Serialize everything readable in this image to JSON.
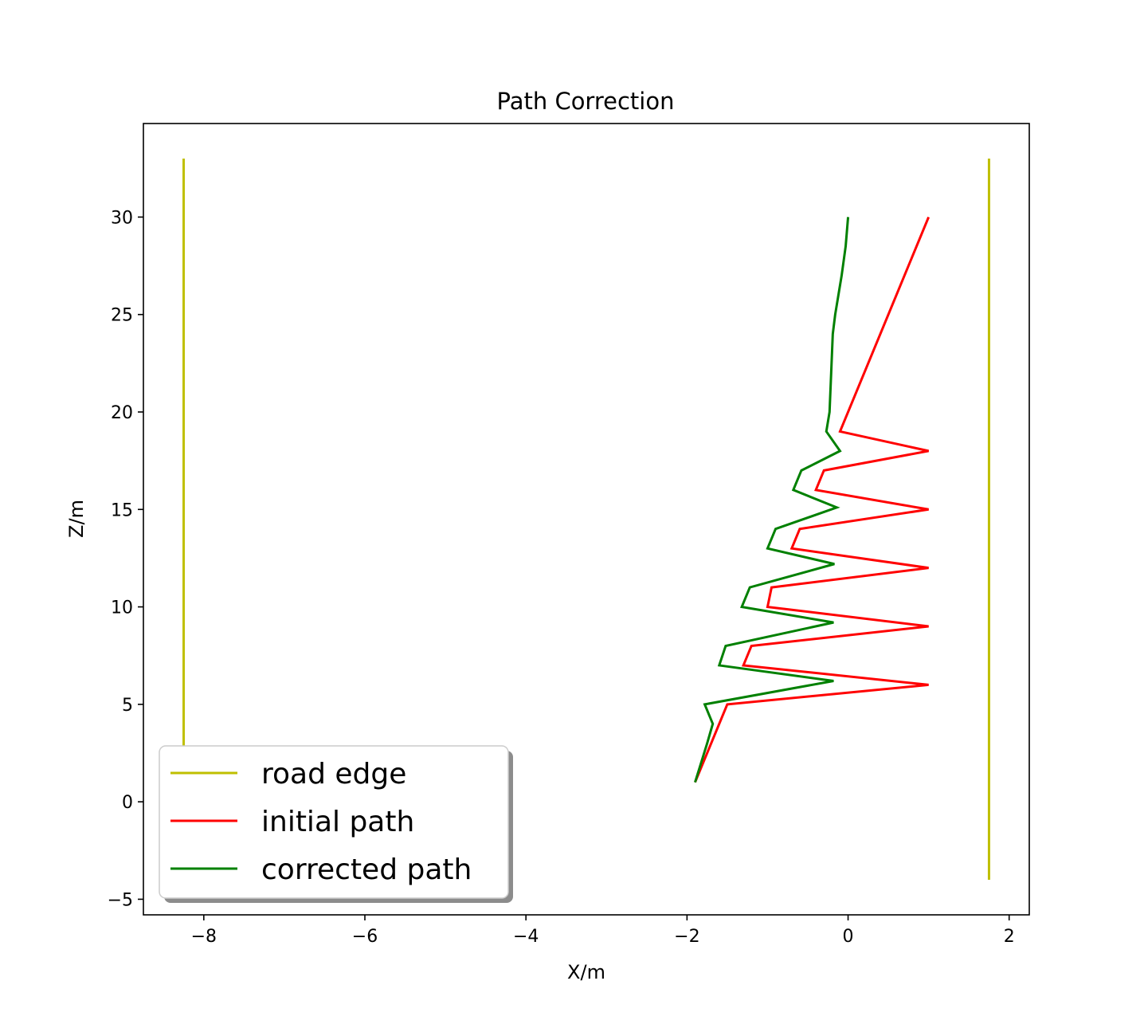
{
  "chart_data": {
    "type": "line",
    "title": "Path Correction",
    "xlabel": "X/m",
    "ylabel": "Z/m",
    "xlim": [
      -8.75,
      2.25
    ],
    "ylim": [
      -5.8,
      34.8
    ],
    "xticks": [
      {
        "value": -8,
        "label": "−8"
      },
      {
        "value": -6,
        "label": "−6"
      },
      {
        "value": -4,
        "label": "−4"
      },
      {
        "value": -2,
        "label": "−2"
      },
      {
        "value": 0,
        "label": "0"
      },
      {
        "value": 2,
        "label": "2"
      }
    ],
    "yticks": [
      {
        "value": -5,
        "label": "−5"
      },
      {
        "value": 0,
        "label": "0"
      },
      {
        "value": 5,
        "label": "5"
      },
      {
        "value": 10,
        "label": "10"
      },
      {
        "value": 15,
        "label": "15"
      },
      {
        "value": 20,
        "label": "20"
      },
      {
        "value": 25,
        "label": "25"
      },
      {
        "value": 30,
        "label": "30"
      }
    ],
    "grid": false,
    "legend_position": "lower-left",
    "series": [
      {
        "name": "road edge",
        "color": "#bfbf00",
        "segments": [
          {
            "x": [
              -8.25,
              -8.25
            ],
            "y": [
              33,
              -4
            ]
          },
          {
            "x": [
              1.75,
              1.75
            ],
            "y": [
              33,
              -4
            ]
          }
        ]
      },
      {
        "name": "initial path",
        "color": "#ff0000",
        "x": [
          -1.9,
          -1.7,
          -1.5,
          1.0,
          -1.3,
          -1.2,
          1.0,
          -1.0,
          -0.95,
          1.0,
          -0.7,
          -0.6,
          1.0,
          -0.4,
          -0.3,
          1.0,
          -0.1,
          1.0
        ],
        "y": [
          1,
          3,
          5,
          6,
          7,
          8,
          9,
          10,
          11,
          12,
          13,
          14,
          15,
          16,
          17,
          18,
          19,
          30
        ]
      },
      {
        "name": "corrected path",
        "color": "#008000",
        "x": [
          -1.9,
          -1.75,
          -1.68,
          -1.78,
          -0.18,
          -1.6,
          -1.52,
          -0.18,
          -1.32,
          -1.22,
          -0.17,
          -1.0,
          -0.9,
          -0.14,
          -0.68,
          -0.58,
          -0.1,
          -0.27,
          -0.23,
          -0.21,
          -0.19,
          -0.16,
          -0.12,
          -0.08,
          -0.03,
          0.0
        ],
        "y": [
          1,
          3,
          4,
          5,
          6.2,
          7,
          8,
          9.2,
          10,
          11,
          12.2,
          13,
          14,
          15.1,
          16,
          17,
          18,
          19,
          20,
          22,
          24,
          25,
          26,
          27,
          28.5,
          30
        ]
      }
    ]
  }
}
